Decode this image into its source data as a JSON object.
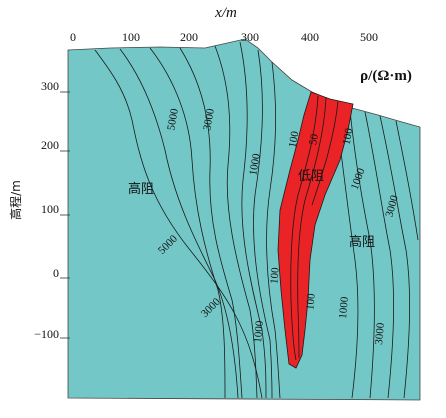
{
  "x_axis": {
    "title": "x/m",
    "ticks": [
      "0",
      "100",
      "200",
      "300",
      "400",
      "500"
    ]
  },
  "y_axis": {
    "title": "高程/m",
    "ticks": [
      "300",
      "200",
      "100",
      "0",
      "−100"
    ]
  },
  "legend_unit": "ρ/(Ω·m)",
  "region_labels": {
    "high_left": "高阻",
    "low": "低阻",
    "high_right": "高阻"
  },
  "contour_labels": {
    "l5000a": "5000",
    "l3000a": "3000",
    "l1000a": "1000",
    "l100a": "100",
    "l50": "50",
    "l100b": "100",
    "l1000b": "1000",
    "l3000b": "3000",
    "l5000b": "5000",
    "l3000c": "3000",
    "l100c": "100",
    "l100d": "100",
    "l1000c": "1000",
    "l1000d": "1000",
    "l3000d": "3000"
  },
  "colors": {
    "background": "#73c7c6",
    "low_resistivity": "#ea2326",
    "contour": "#1a1a1a"
  }
}
